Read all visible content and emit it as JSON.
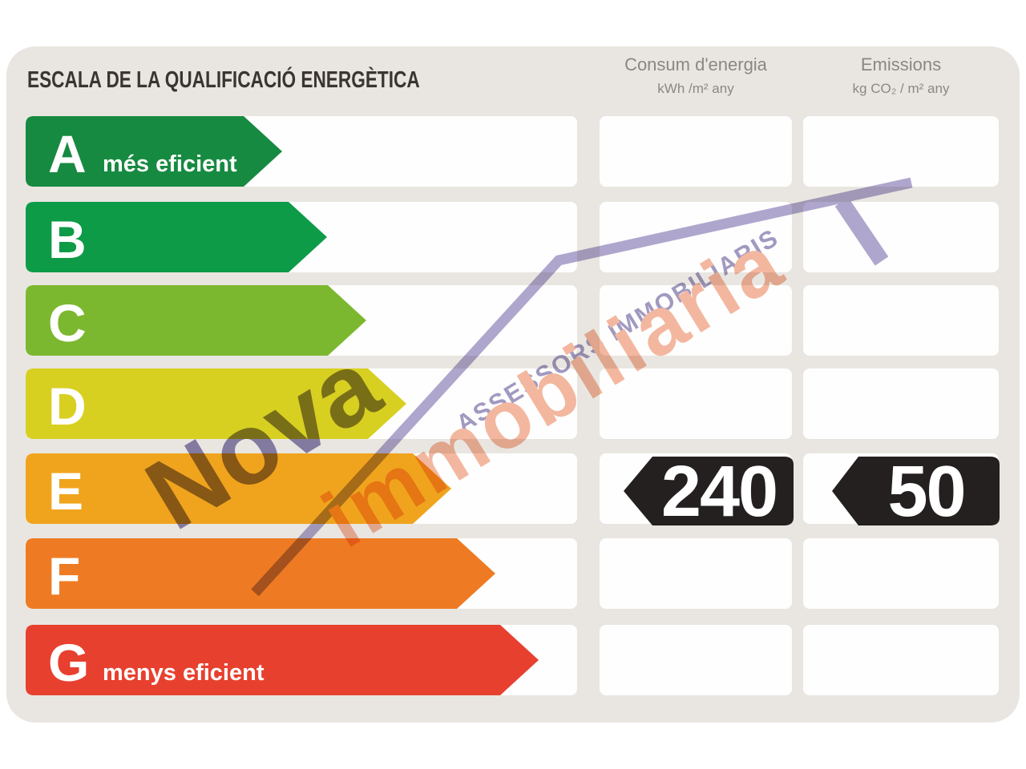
{
  "title": "ESCALA DE LA QUALIFICACIÓ ENERGÈTICA",
  "columns": {
    "consumption": {
      "title": "Consum d'energia",
      "unit": "kWh /m²  any"
    },
    "emissions": {
      "title": "Emissions",
      "unit": "kg CO₂  / m²  any"
    }
  },
  "scale": {
    "rows": [
      {
        "letter": "A",
        "note": "més eficient",
        "color": "#178a41",
        "tip": 352
      },
      {
        "letter": "B",
        "note": "",
        "color": "#0d9b48",
        "tip": 408
      },
      {
        "letter": "C",
        "note": "",
        "color": "#7cb82f",
        "tip": 457
      },
      {
        "letter": "D",
        "note": "",
        "color": "#d8d021",
        "tip": 507
      },
      {
        "letter": "E",
        "note": "",
        "color": "#f0a41d",
        "tip": 563
      },
      {
        "letter": "F",
        "note": "",
        "color": "#ee7b23",
        "tip": 618
      },
      {
        "letter": "G",
        "note": "menys eficient",
        "color": "#e8402f",
        "tip": 672
      }
    ]
  },
  "values": {
    "rating_row": "E",
    "consumption": "240",
    "emissions": "50",
    "badge_color": "#23201f"
  },
  "watermark": {
    "brand_top": "Nova",
    "brand_main": "immobiliaria",
    "tagline": "ASSESSORS IMMOBILIARIS",
    "roof_color": "#a79ec9",
    "tagline_color": "#988fba",
    "brand_top_color": "#837aad",
    "brand_main_color": "#f3b096"
  },
  "chart_data": {
    "type": "bar",
    "title": "ESCALA DE LA QUALIFICACIÓ ENERGÈTICA",
    "categories": [
      "A",
      "B",
      "C",
      "D",
      "E",
      "F",
      "G"
    ],
    "values": [
      320,
      376,
      425,
      475,
      531,
      586,
      640
    ],
    "value_meaning": "relative arrow length in pixels (qualitative efficiency scale, no numeric axis)",
    "annotations": [
      "A = més eficient",
      "G = menys eficient"
    ],
    "series": [
      {
        "name": "Consum d'energia (kWh/m² any)",
        "rating": "E",
        "value": 240
      },
      {
        "name": "Emissions (kg CO₂/m² any)",
        "rating": "E",
        "value": 50
      }
    ],
    "legend_position": "none",
    "grid": false
  }
}
